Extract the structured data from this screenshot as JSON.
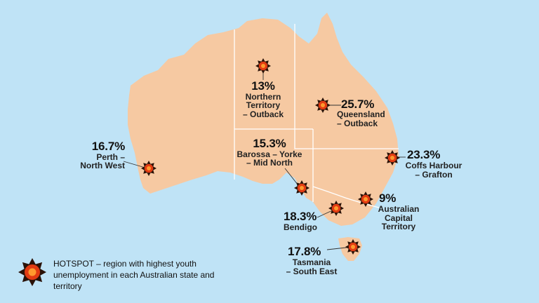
{
  "colors": {
    "sea": "#bfe3f6",
    "land": "#f6c9a2",
    "border": "#ffffff",
    "hotspot_outer": "#2a1208",
    "hotspot_inner": "#e23b12",
    "hotspot_core": "#ff9a2e"
  },
  "regions": [
    {
      "id": "nt",
      "percent": "13%",
      "name": "Northern Territory – Outback",
      "name_lines": [
        "Northern",
        "Territory",
        "– Outback"
      ]
    },
    {
      "id": "qld",
      "percent": "25.7%",
      "name": "Queensland – Outback",
      "name_lines": [
        "Queensland",
        "– Outback"
      ]
    },
    {
      "id": "wa",
      "percent": "16.7%",
      "name": "Perth – North West",
      "name_lines": [
        "Perth –",
        "North West"
      ]
    },
    {
      "id": "sa",
      "percent": "15.3%",
      "name": "Barossa – Yorke – Mid North",
      "name_lines": [
        "Barossa – Yorke",
        "– Mid North"
      ]
    },
    {
      "id": "nsw",
      "percent": "23.3%",
      "name": "Coffs Harbour – Grafton",
      "name_lines": [
        "Coffs Harbour",
        "– Grafton"
      ]
    },
    {
      "id": "act",
      "percent": "9%",
      "name": "Australian Capital Territory",
      "name_lines": [
        "Australian",
        "Capital",
        "Territory"
      ]
    },
    {
      "id": "vic",
      "percent": "18.3%",
      "name": "Bendigo",
      "name_lines": [
        "Bendigo"
      ]
    },
    {
      "id": "tas",
      "percent": "17.8%",
      "name": "Tasmania – South East",
      "name_lines": [
        "Tasmania",
        "– South East"
      ]
    }
  ],
  "legend": {
    "icon": "hotspot-icon",
    "text": "HOTSPOT – region with highest youth unemployment in each Australian state and territory"
  }
}
